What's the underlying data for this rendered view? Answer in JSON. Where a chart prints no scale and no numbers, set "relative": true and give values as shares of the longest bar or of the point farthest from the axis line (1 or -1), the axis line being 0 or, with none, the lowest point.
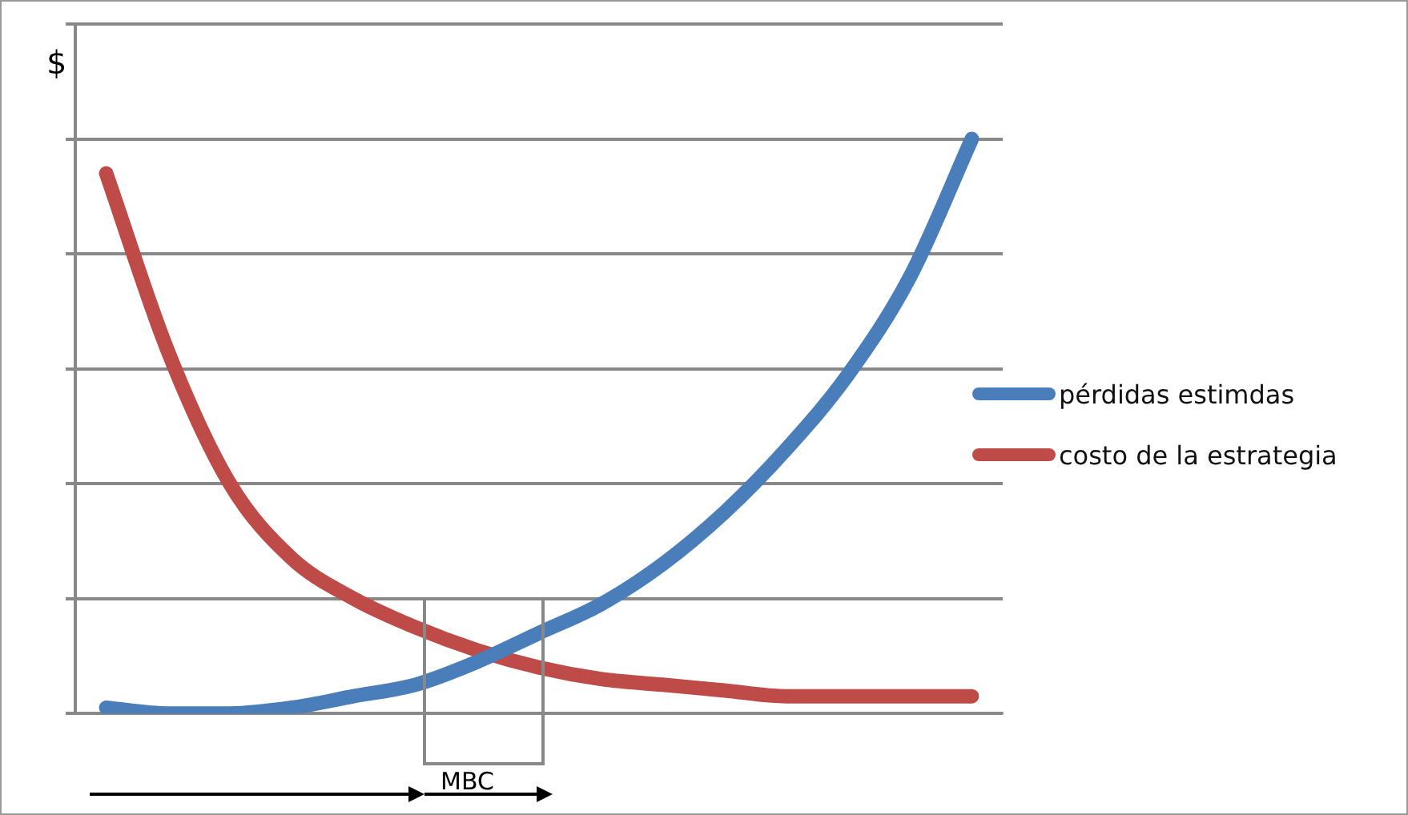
{
  "chart_data": {
    "type": "line",
    "relative": true,
    "ylabel": "$",
    "annotations": [
      "MBC"
    ],
    "grid": "y",
    "legend": "right",
    "marker": "none",
    "line_style": "solid",
    "categories": [
      null,
      null,
      null,
      null,
      null,
      null,
      null,
      null,
      null,
      null,
      null,
      null,
      null,
      null,
      null
    ],
    "series": [
      {
        "name": "pérdidas estimdas",
        "color": "#4a7ebb",
        "values": [
          0.01,
          0,
          0,
          0.01,
          0.03,
          0.05,
          0.09,
          0.14,
          0.19,
          0.26,
          0.35,
          0.46,
          0.59,
          0.76,
          1
        ]
      },
      {
        "name": "costo de la estrategia",
        "color": "#be4b48",
        "values": [
          0.94,
          0.63,
          0.4,
          0.27,
          0.2,
          0.15,
          0.11,
          0.08,
          0.06,
          0.05,
          0.04,
          0.03,
          0.03,
          0.03,
          0.03
        ]
      }
    ]
  }
}
